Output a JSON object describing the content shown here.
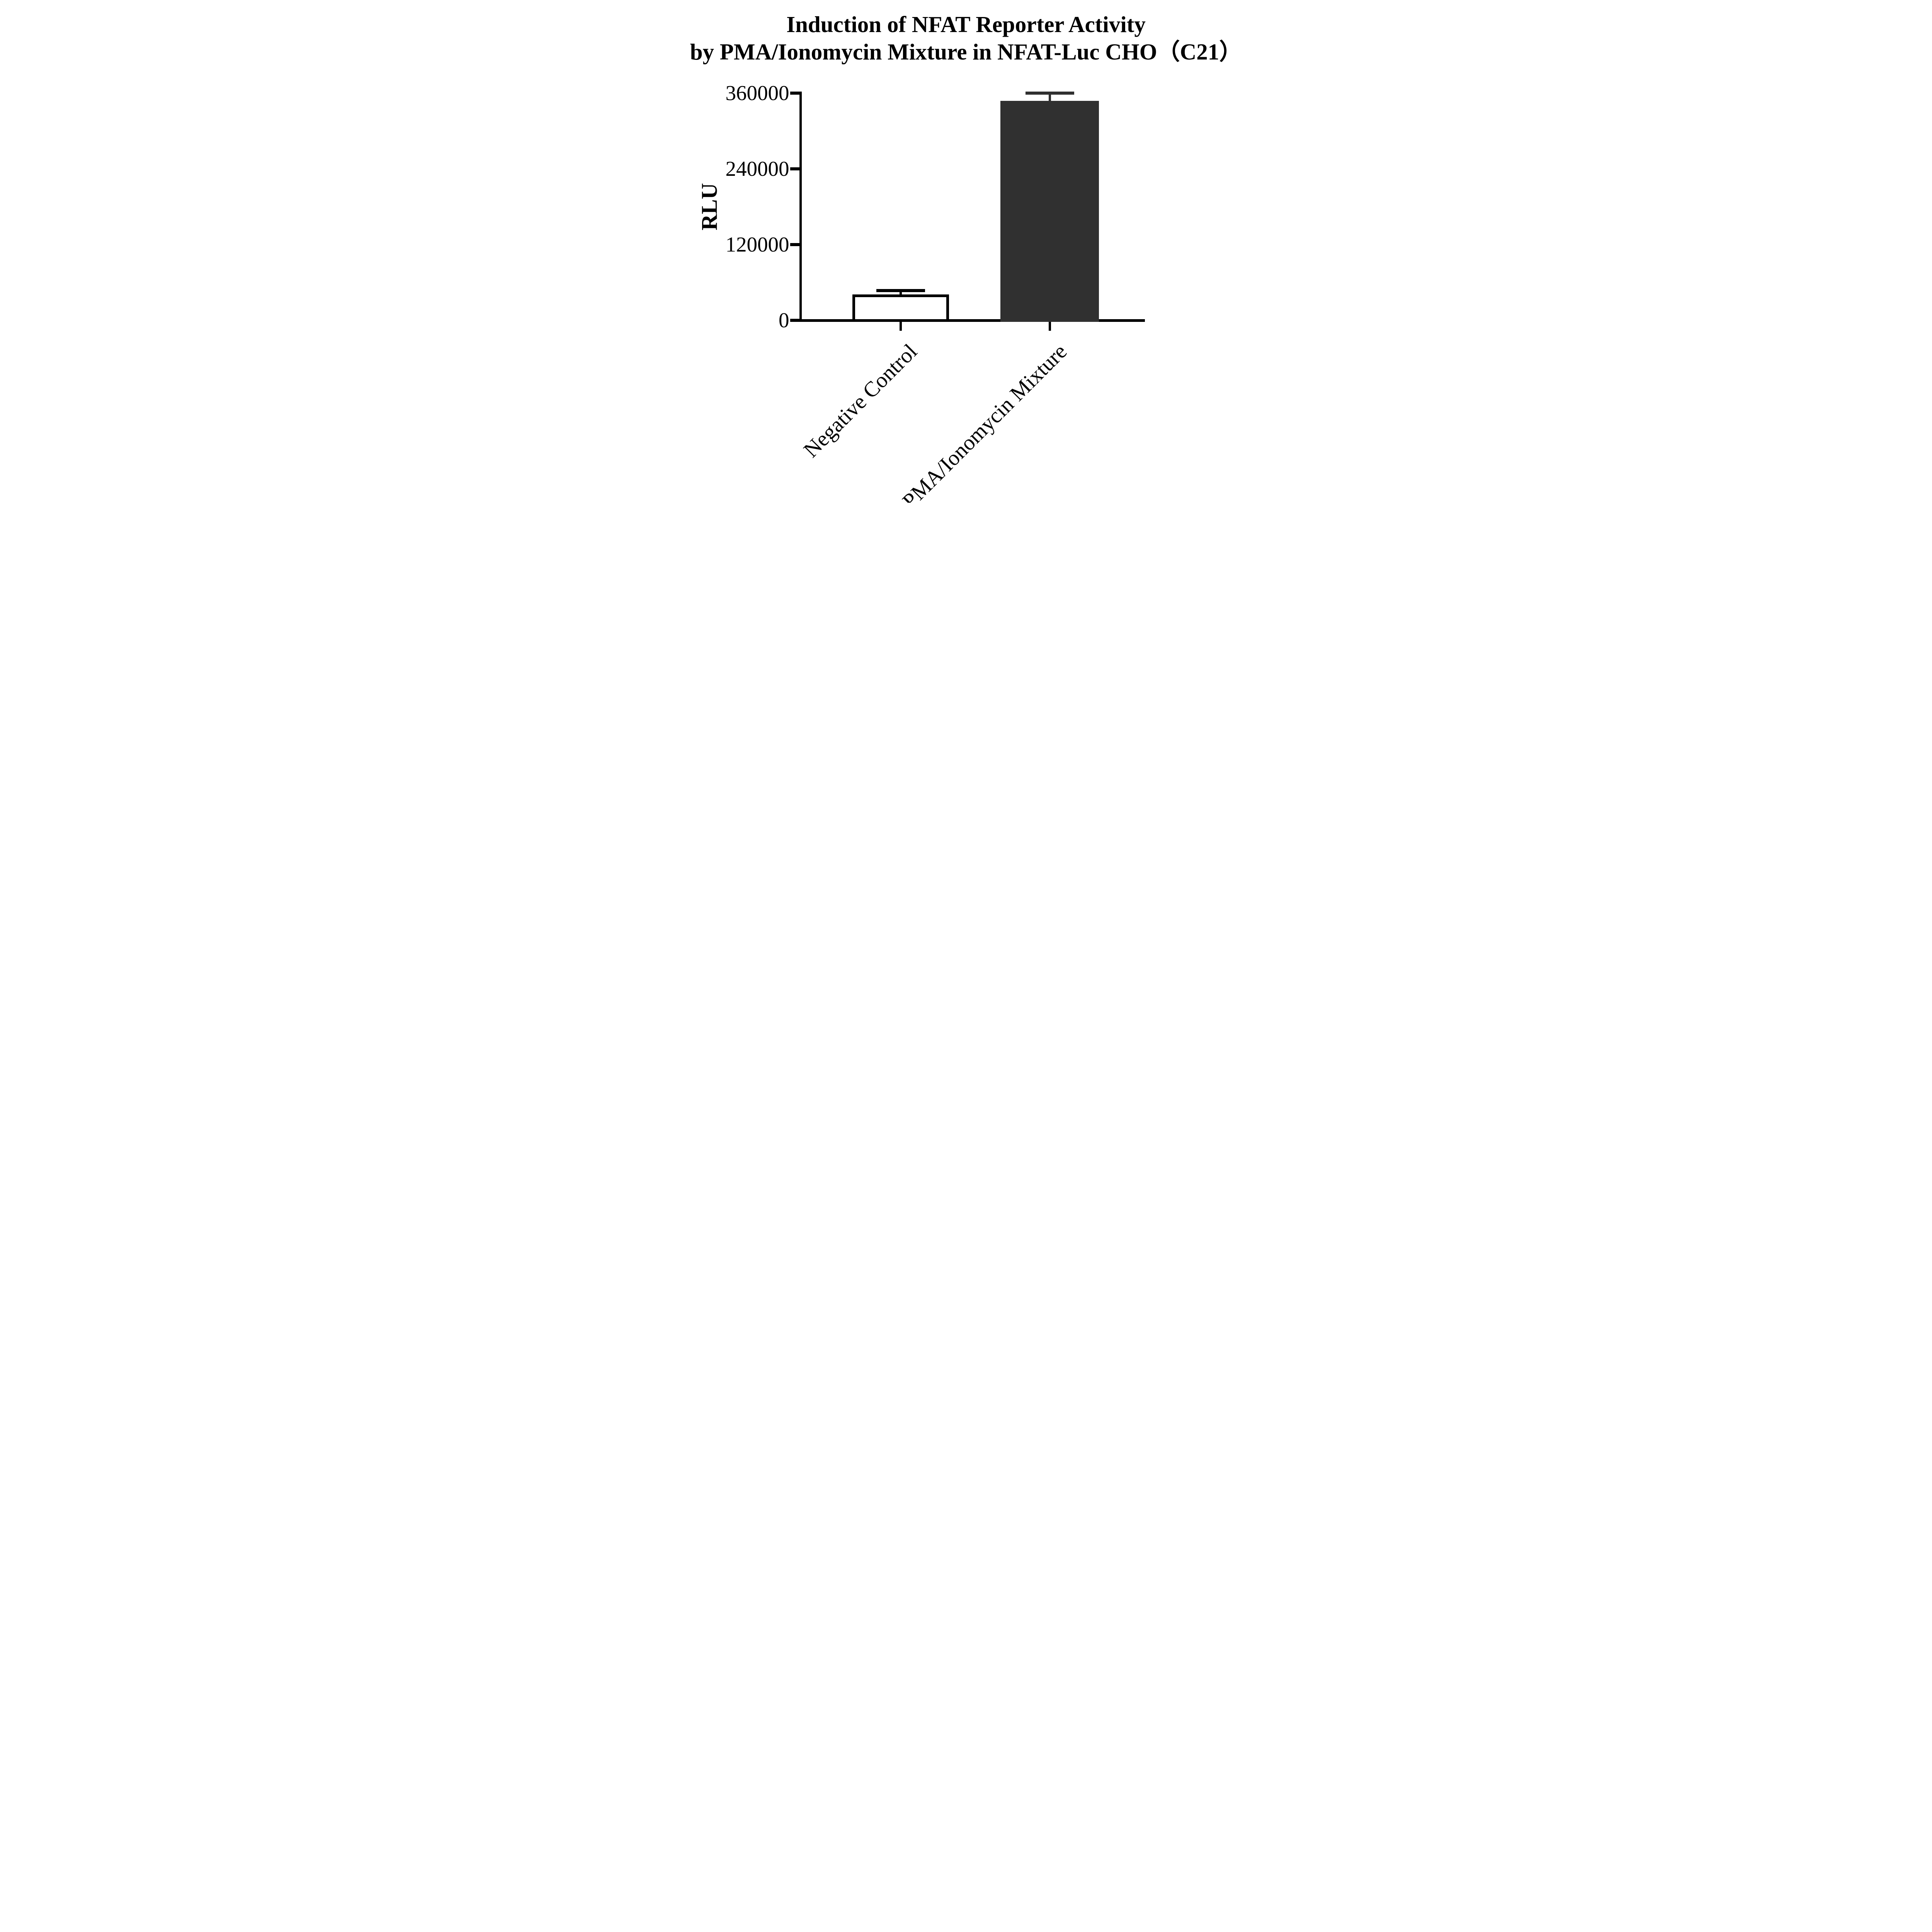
{
  "title": {
    "line1": "Induction of NFAT Reporter Activity",
    "line2": "by PMA/Ionomycin Mixture in NFAT-Luc CHO（C21）"
  },
  "y_axis": {
    "label": "RLU",
    "ticks": [
      "360000",
      "240000",
      "120000",
      "0"
    ]
  },
  "x_axis": {
    "categories": [
      "Negative Control",
      "PMA/Ionomycin Mixture"
    ]
  },
  "chart_data": {
    "type": "bar",
    "title": "Induction of NFAT Reporter Activity by PMA/Ionomycin Mixture in NFAT-Luc CHO（C21）",
    "categories": [
      "Negative Control",
      "PMA/Ionomycin Mixture"
    ],
    "values": [
      41000,
      348000
    ],
    "errors": [
      6000,
      12000
    ],
    "error_style": "upper-only",
    "xlabel": "",
    "ylabel": "RLU",
    "ylim": [
      0,
      360000
    ],
    "yticks": [
      0,
      120000,
      240000,
      360000
    ],
    "bar_fills": [
      "#ffffff",
      "#303030"
    ],
    "bar_strokes": [
      "#000000",
      "#303030"
    ],
    "axis_color": "#000000",
    "background": "#ffffff",
    "grid": false,
    "legend": "none"
  }
}
